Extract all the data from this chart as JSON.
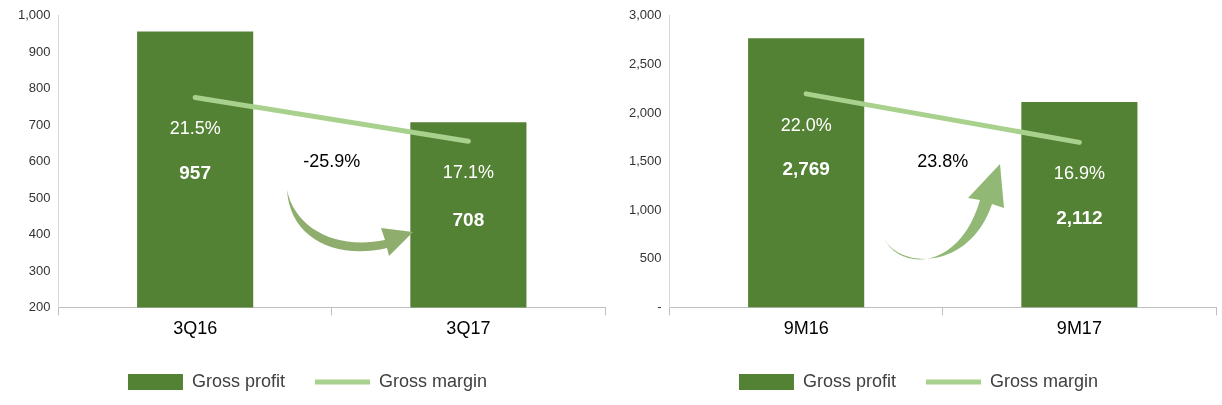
{
  "chart_data": [
    {
      "type": "bar",
      "categories": [
        "3Q16",
        "3Q17"
      ],
      "ylim": [
        200,
        1000
      ],
      "yticks": [
        200,
        300,
        400,
        500,
        600,
        700,
        800,
        {
          "value": 900,
          "label": "900"
        },
        {
          "value": 1000,
          "label": "1,000"
        }
      ],
      "y2lim": [
        0.4,
        29.7
      ],
      "grid": false,
      "legend": "bottom",
      "marker": "none",
      "annotations": [
        "-25.9%"
      ],
      "series": [
        {
          "name": "Gross profit",
          "color": "#548235",
          "values": [
            957,
            708
          ],
          "value_labels": [
            "957",
            "708"
          ]
        },
        {
          "name": "Gross margin",
          "type": "line",
          "axis": "y2",
          "color": "#a9d18e",
          "values": [
            21.5,
            17.1
          ],
          "value_labels": [
            "21.5%",
            "17.1%"
          ]
        }
      ]
    },
    {
      "type": "bar",
      "categories": [
        "9M16",
        "9M17"
      ],
      "ylim": [
        0,
        3000
      ],
      "yticks": [
        {
          "value": 0,
          "label": "-"
        },
        500,
        {
          "value": 1000,
          "label": "1,000"
        },
        {
          "value": 1500,
          "label": "1,500"
        },
        {
          "value": 2000,
          "label": "2,000"
        },
        {
          "value": 2500,
          "label": "2,500"
        },
        {
          "value": 3000,
          "label": "3,000"
        }
      ],
      "y2lim": [
        -0.44,
        30.2
      ],
      "grid": false,
      "legend": "bottom",
      "marker": "none",
      "annotations": [
        "23.8%"
      ],
      "series": [
        {
          "name": "Gross profit",
          "color": "#548235",
          "values": [
            2769,
            2112
          ],
          "value_labels": [
            "2,769",
            "2,112"
          ]
        },
        {
          "name": "Gross margin",
          "type": "line",
          "axis": "y2",
          "color": "#a9d18e",
          "values": [
            22.0,
            16.9
          ],
          "value_labels": [
            "22.0%",
            "16.9%"
          ]
        }
      ]
    }
  ]
}
